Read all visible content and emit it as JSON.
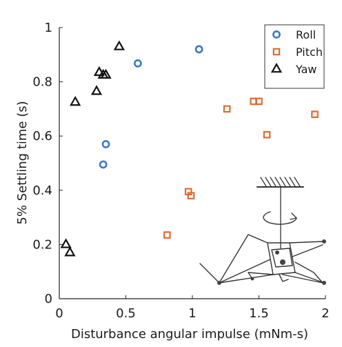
{
  "chart_data": {
    "type": "scatter",
    "xlabel": "Disturbance angular impulse (mNm-s)",
    "ylabel": "5% Settling time (s)",
    "xlim": [
      0,
      2
    ],
    "ylim": [
      0,
      1
    ],
    "xticks": [
      "0",
      "0.5",
      "1",
      "1.5",
      "2"
    ],
    "yticks": [
      "0",
      "0.2",
      "0.4",
      "0.6",
      "0.8",
      "1"
    ],
    "grid": false,
    "legend_position": "top-right",
    "series": [
      {
        "name": "Roll",
        "marker": "circle",
        "color": "#3b78c3",
        "points": [
          {
            "x": 0.33,
            "y": 0.495
          },
          {
            "x": 0.35,
            "y": 0.57
          },
          {
            "x": 0.59,
            "y": 0.868
          },
          {
            "x": 1.05,
            "y": 0.92
          }
        ]
      },
      {
        "name": "Pitch",
        "marker": "square",
        "color": "#e06a30",
        "points": [
          {
            "x": 0.81,
            "y": 0.235
          },
          {
            "x": 0.97,
            "y": 0.395
          },
          {
            "x": 0.99,
            "y": 0.38
          },
          {
            "x": 1.26,
            "y": 0.7
          },
          {
            "x": 1.46,
            "y": 0.728
          },
          {
            "x": 1.5,
            "y": 0.728
          },
          {
            "x": 1.56,
            "y": 0.605
          },
          {
            "x": 1.92,
            "y": 0.68
          }
        ]
      },
      {
        "name": "Yaw",
        "marker": "triangle",
        "color": "#111111",
        "points": [
          {
            "x": 0.05,
            "y": 0.2
          },
          {
            "x": 0.08,
            "y": 0.17
          },
          {
            "x": 0.12,
            "y": 0.725
          },
          {
            "x": 0.28,
            "y": 0.765
          },
          {
            "x": 0.3,
            "y": 0.835
          },
          {
            "x": 0.33,
            "y": 0.825
          },
          {
            "x": 0.35,
            "y": 0.825
          },
          {
            "x": 0.45,
            "y": 0.93
          }
        ]
      }
    ]
  },
  "inset": {
    "description_icon": "robot-pendulum-icon",
    "color": "#333333"
  }
}
